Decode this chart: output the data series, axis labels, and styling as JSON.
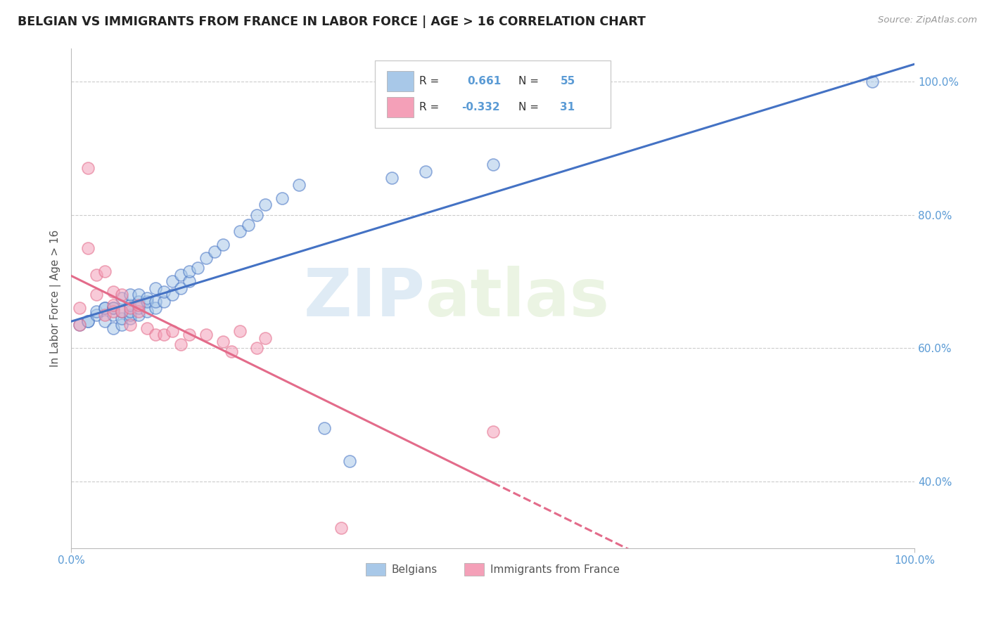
{
  "title": "BELGIAN VS IMMIGRANTS FROM FRANCE IN LABOR FORCE | AGE > 16 CORRELATION CHART",
  "source": "Source: ZipAtlas.com",
  "ylabel": "In Labor Force | Age > 16",
  "xlim": [
    0.0,
    1.0
  ],
  "ylim": [
    0.3,
    1.05
  ],
  "x_tick_labels": [
    "0.0%",
    "100.0%"
  ],
  "y_tick_labels": [
    "40.0%",
    "60.0%",
    "80.0%",
    "100.0%"
  ],
  "y_tick_values": [
    0.4,
    0.6,
    0.8,
    1.0
  ],
  "legend_r_blue": "0.661",
  "legend_n_blue": "55",
  "legend_r_pink": "-0.332",
  "legend_n_pink": "31",
  "blue_color": "#a8c8e8",
  "pink_color": "#f4a0b8",
  "blue_line_color": "#4472c4",
  "pink_line_color": "#e36b8a",
  "watermark_color": "#c8dff0",
  "belgians_x": [
    0.01,
    0.02,
    0.02,
    0.03,
    0.03,
    0.04,
    0.04,
    0.04,
    0.05,
    0.05,
    0.05,
    0.05,
    0.06,
    0.06,
    0.06,
    0.06,
    0.07,
    0.07,
    0.07,
    0.07,
    0.07,
    0.08,
    0.08,
    0.08,
    0.08,
    0.09,
    0.09,
    0.09,
    0.1,
    0.1,
    0.1,
    0.11,
    0.11,
    0.12,
    0.12,
    0.13,
    0.13,
    0.14,
    0.14,
    0.15,
    0.16,
    0.17,
    0.18,
    0.2,
    0.21,
    0.22,
    0.23,
    0.25,
    0.27,
    0.3,
    0.33,
    0.38,
    0.42,
    0.5,
    0.95
  ],
  "belgians_y": [
    0.635,
    0.64,
    0.64,
    0.65,
    0.655,
    0.64,
    0.66,
    0.66,
    0.63,
    0.65,
    0.66,
    0.66,
    0.635,
    0.645,
    0.655,
    0.675,
    0.645,
    0.65,
    0.655,
    0.665,
    0.68,
    0.65,
    0.66,
    0.67,
    0.68,
    0.655,
    0.67,
    0.675,
    0.66,
    0.67,
    0.69,
    0.67,
    0.685,
    0.68,
    0.7,
    0.69,
    0.71,
    0.7,
    0.715,
    0.72,
    0.735,
    0.745,
    0.755,
    0.775,
    0.785,
    0.8,
    0.815,
    0.825,
    0.845,
    0.48,
    0.43,
    0.855,
    0.865,
    0.875,
    1.0
  ],
  "immigrants_x": [
    0.01,
    0.01,
    0.02,
    0.02,
    0.03,
    0.03,
    0.04,
    0.04,
    0.05,
    0.05,
    0.05,
    0.06,
    0.06,
    0.07,
    0.07,
    0.08,
    0.08,
    0.09,
    0.1,
    0.11,
    0.12,
    0.13,
    0.14,
    0.16,
    0.18,
    0.19,
    0.2,
    0.22,
    0.23,
    0.5,
    0.32
  ],
  "immigrants_y": [
    0.635,
    0.66,
    0.75,
    0.87,
    0.68,
    0.71,
    0.65,
    0.715,
    0.655,
    0.665,
    0.685,
    0.655,
    0.68,
    0.635,
    0.66,
    0.655,
    0.665,
    0.63,
    0.62,
    0.62,
    0.625,
    0.605,
    0.62,
    0.62,
    0.61,
    0.595,
    0.625,
    0.6,
    0.615,
    0.475,
    0.33
  ]
}
